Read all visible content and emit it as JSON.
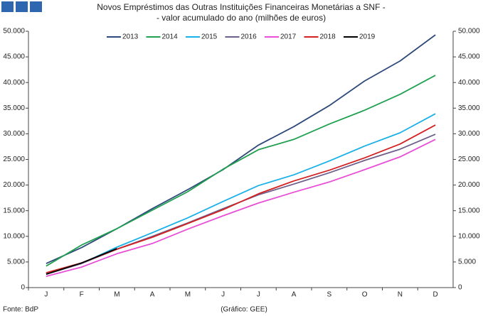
{
  "chart_data": {
    "type": "line",
    "title": "Novos Empréstimos das Outras Instituições Financeiras Monetárias a SNF -",
    "subtitle": "- valor acumulado do ano (milhões de euros)",
    "source": "Fonte: BdP",
    "credit": "(Gráfico: GEE)",
    "categories": [
      "J",
      "F",
      "M",
      "A",
      "M",
      "J",
      "J",
      "A",
      "S",
      "O",
      "N",
      "D"
    ],
    "series": [
      {
        "name": "2013",
        "color": "#2e4a7a",
        "values": [
          4700,
          7800,
          11500,
          15400,
          19100,
          23000,
          27800,
          31400,
          35500,
          40300,
          44200,
          49300
        ]
      },
      {
        "name": "2014",
        "color": "#20a050",
        "values": [
          4200,
          8300,
          11500,
          15100,
          18700,
          23100,
          26900,
          28900,
          31900,
          34600,
          37700,
          41400
        ]
      },
      {
        "name": "2015",
        "color": "#1ab0e8",
        "values": [
          2800,
          4700,
          7900,
          10700,
          13600,
          16800,
          19900,
          22000,
          24700,
          27600,
          30200,
          33900
        ]
      },
      {
        "name": "2016",
        "color": "#6e5f8a",
        "values": [
          2600,
          4700,
          7500,
          10000,
          12600,
          15400,
          18100,
          20200,
          22400,
          24800,
          27000,
          29900
        ]
      },
      {
        "name": "2017",
        "color": "#e84fd6",
        "values": [
          2200,
          4000,
          6600,
          8600,
          11400,
          14000,
          16500,
          18600,
          20600,
          23000,
          25500,
          28900
        ]
      },
      {
        "name": "2018",
        "color": "#d42020",
        "values": [
          2900,
          4800,
          7500,
          9800,
          12500,
          15200,
          18300,
          20800,
          22900,
          25300,
          28000,
          31700
        ]
      },
      {
        "name": "2019",
        "color": "#000000",
        "values": [
          2600,
          4800,
          7600,
          null,
          null,
          null,
          null,
          null,
          null,
          null,
          null,
          null
        ]
      }
    ],
    "ylim": [
      0,
      50000
    ],
    "yticks": [
      0,
      {
        "value": 5000,
        "label": "5.000"
      },
      {
        "value": 10000,
        "label": "10.000"
      },
      {
        "value": 15000,
        "label": "15.000"
      },
      {
        "value": 20000,
        "label": "20.000"
      },
      {
        "value": 25000,
        "label": "25.000"
      },
      {
        "value": 30000,
        "label": "30.000"
      },
      {
        "value": 35000,
        "label": "35.000"
      },
      {
        "value": 40000,
        "label": "40.000"
      },
      {
        "value": 45000,
        "label": "45.000"
      },
      {
        "value": 50000,
        "label": "50.000"
      }
    ],
    "y2lim": [
      0,
      50000
    ],
    "y2ticks": [
      0,
      {
        "value": 5000,
        "label": "5.000"
      },
      {
        "value": 10000,
        "label": "10.000"
      },
      {
        "value": 15000,
        "label": "15.000"
      },
      {
        "value": 20000,
        "label": "20.000"
      },
      {
        "value": 25000,
        "label": "25.000"
      },
      {
        "value": 30000,
        "label": "30.000"
      },
      {
        "value": 35000,
        "label": "35.000"
      },
      {
        "value": 40000,
        "label": "40.000"
      },
      {
        "value": 45000,
        "label": "45.000"
      },
      {
        "value": 50000,
        "label": "50.000"
      }
    ],
    "grid": false,
    "legend": "top"
  }
}
